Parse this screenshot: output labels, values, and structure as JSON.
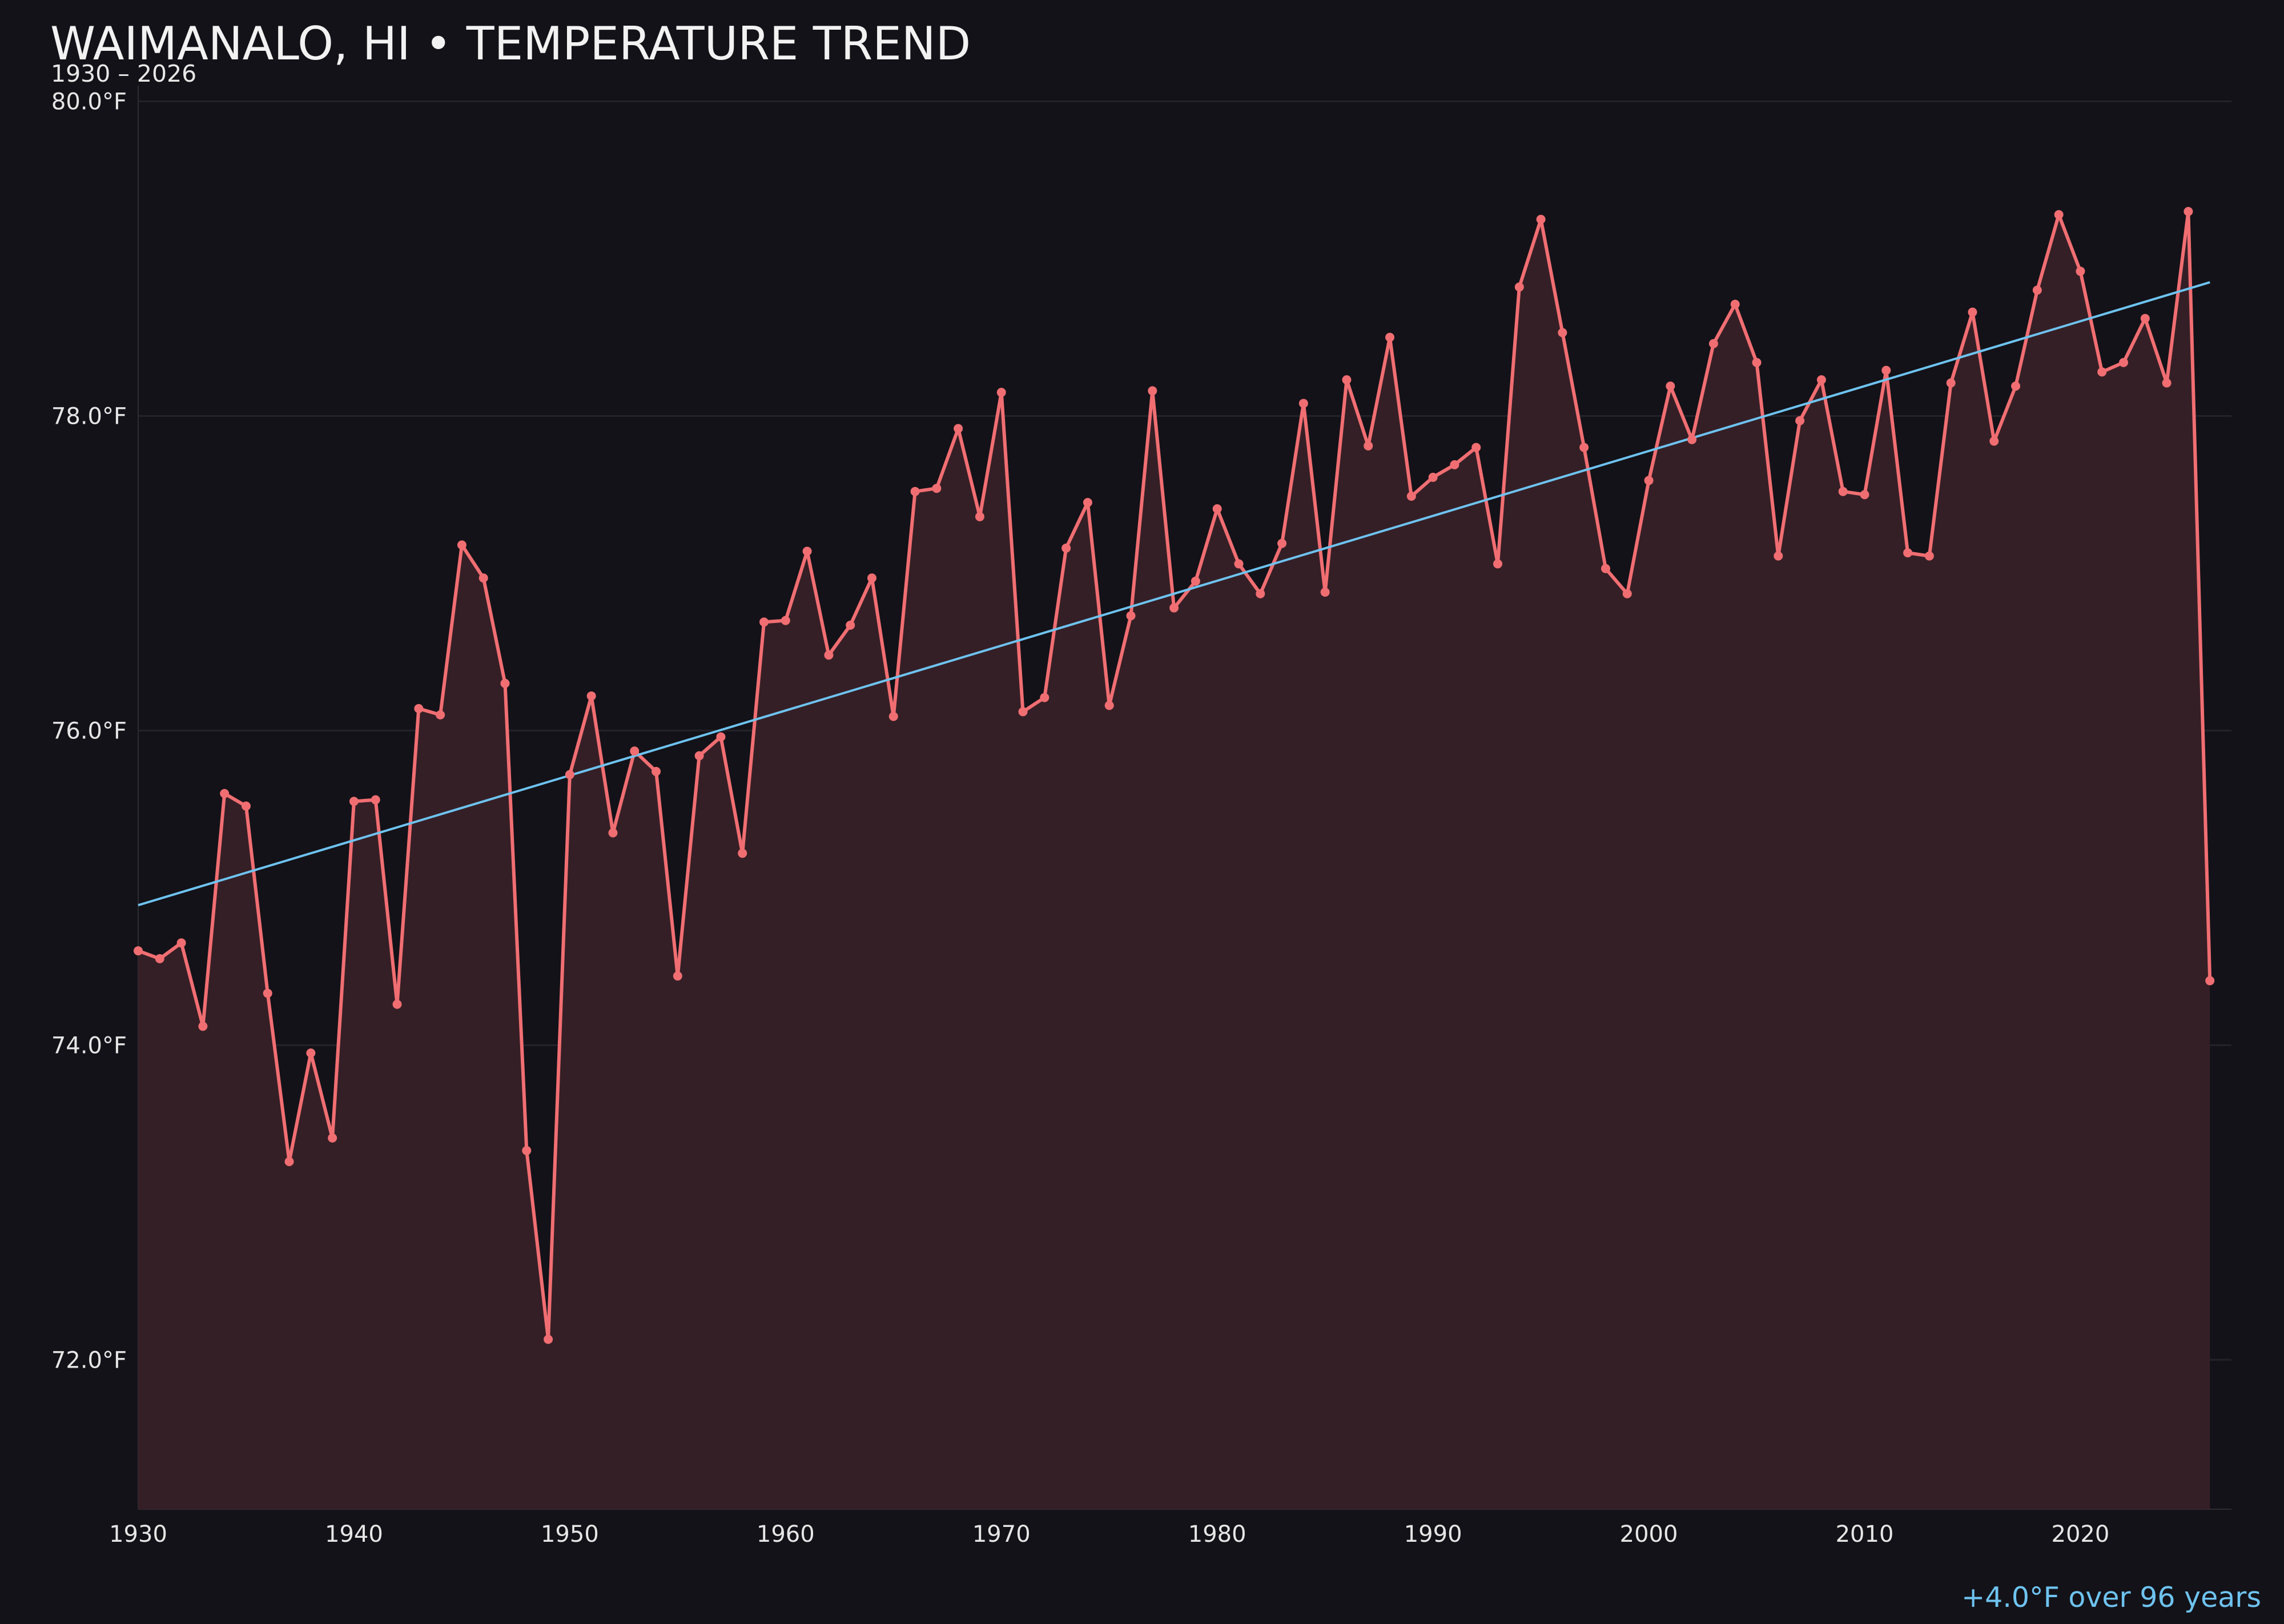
{
  "title": "WAIMANALO, HI • TEMPERATURE TREND",
  "subtitle": "1930 – 2026",
  "trend_note": "+4.0°F over 96 years",
  "colors": {
    "background": "#131218",
    "series_line": "#f06e72",
    "series_fill": "#351f26",
    "trend_line": "#6ec3f0",
    "gridline": "#24222a",
    "tick_text": "#e6e6e6"
  },
  "chart_data": {
    "type": "line",
    "title": "WAIMANALO, HI • TEMPERATURE TREND",
    "subtitle": "1930 – 2026",
    "xlabel": "",
    "ylabel": "",
    "xlim": [
      1930,
      2027
    ],
    "ylim": [
      71.05,
      80.1
    ],
    "x_ticks": [
      1930,
      1940,
      1950,
      1960,
      1970,
      1980,
      1990,
      2000,
      2010,
      2020
    ],
    "x_tick_labels": [
      "1930",
      "1940",
      "1950",
      "1960",
      "1970",
      "1980",
      "1990",
      "2000",
      "2010",
      "2020"
    ],
    "y_ticks": [
      72.0,
      74.0,
      76.0,
      78.0,
      80.0
    ],
    "y_tick_labels": [
      "72.0°F",
      "74.0°F",
      "76.0°F",
      "78.0°F",
      "80.0°F"
    ],
    "grid": true,
    "legend": "none",
    "x": [
      1930,
      1931,
      1932,
      1933,
      1934,
      1935,
      1936,
      1937,
      1938,
      1939,
      1940,
      1941,
      1942,
      1943,
      1944,
      1945,
      1946,
      1947,
      1948,
      1949,
      1950,
      1951,
      1952,
      1953,
      1954,
      1955,
      1956,
      1957,
      1958,
      1959,
      1960,
      1961,
      1962,
      1963,
      1964,
      1965,
      1966,
      1967,
      1968,
      1969,
      1970,
      1971,
      1972,
      1973,
      1974,
      1975,
      1976,
      1977,
      1978,
      1979,
      1980,
      1981,
      1982,
      1983,
      1984,
      1985,
      1986,
      1987,
      1988,
      1989,
      1990,
      1991,
      1992,
      1993,
      1994,
      1995,
      1996,
      1997,
      1998,
      1999,
      2000,
      2001,
      2002,
      2003,
      2004,
      2005,
      2006,
      2007,
      2008,
      2009,
      2010,
      2011,
      2012,
      2013,
      2014,
      2015,
      2016,
      2017,
      2018,
      2019,
      2020,
      2021,
      2022,
      2023,
      2024,
      2025,
      2026
    ],
    "series": [
      {
        "name": "",
        "values": [
          74.6,
          74.55,
          74.65,
          74.12,
          75.6,
          75.52,
          74.33,
          73.26,
          73.95,
          73.41,
          75.55,
          75.56,
          74.26,
          76.14,
          76.1,
          77.18,
          76.97,
          76.3,
          73.33,
          72.13,
          75.72,
          76.22,
          75.35,
          75.87,
          75.74,
          74.44,
          75.84,
          75.96,
          75.22,
          76.69,
          76.7,
          77.14,
          76.48,
          76.67,
          76.97,
          76.09,
          77.52,
          77.54,
          77.92,
          77.36,
          78.15,
          76.12,
          76.21,
          77.16,
          77.45,
          76.16,
          76.73,
          78.16,
          76.78,
          76.95,
          77.41,
          77.06,
          76.87,
          77.19,
          78.08,
          76.88,
          78.23,
          77.81,
          78.5,
          77.49,
          77.61,
          77.69,
          77.8,
          77.06,
          78.82,
          79.25,
          78.53,
          77.8,
          77.03,
          76.87,
          77.59,
          78.19,
          77.85,
          78.46,
          78.71,
          78.34,
          77.11,
          77.97,
          78.23,
          77.52,
          77.5,
          78.29,
          77.13,
          77.11,
          78.21,
          78.66,
          77.84,
          78.19,
          78.8,
          79.28,
          78.92,
          78.28,
          78.34,
          78.62,
          78.21,
          79.3,
          74.41
        ]
      }
    ],
    "trend": {
      "x": [
        1930,
        2026
      ],
      "y": [
        74.89,
        78.85
      ]
    }
  }
}
